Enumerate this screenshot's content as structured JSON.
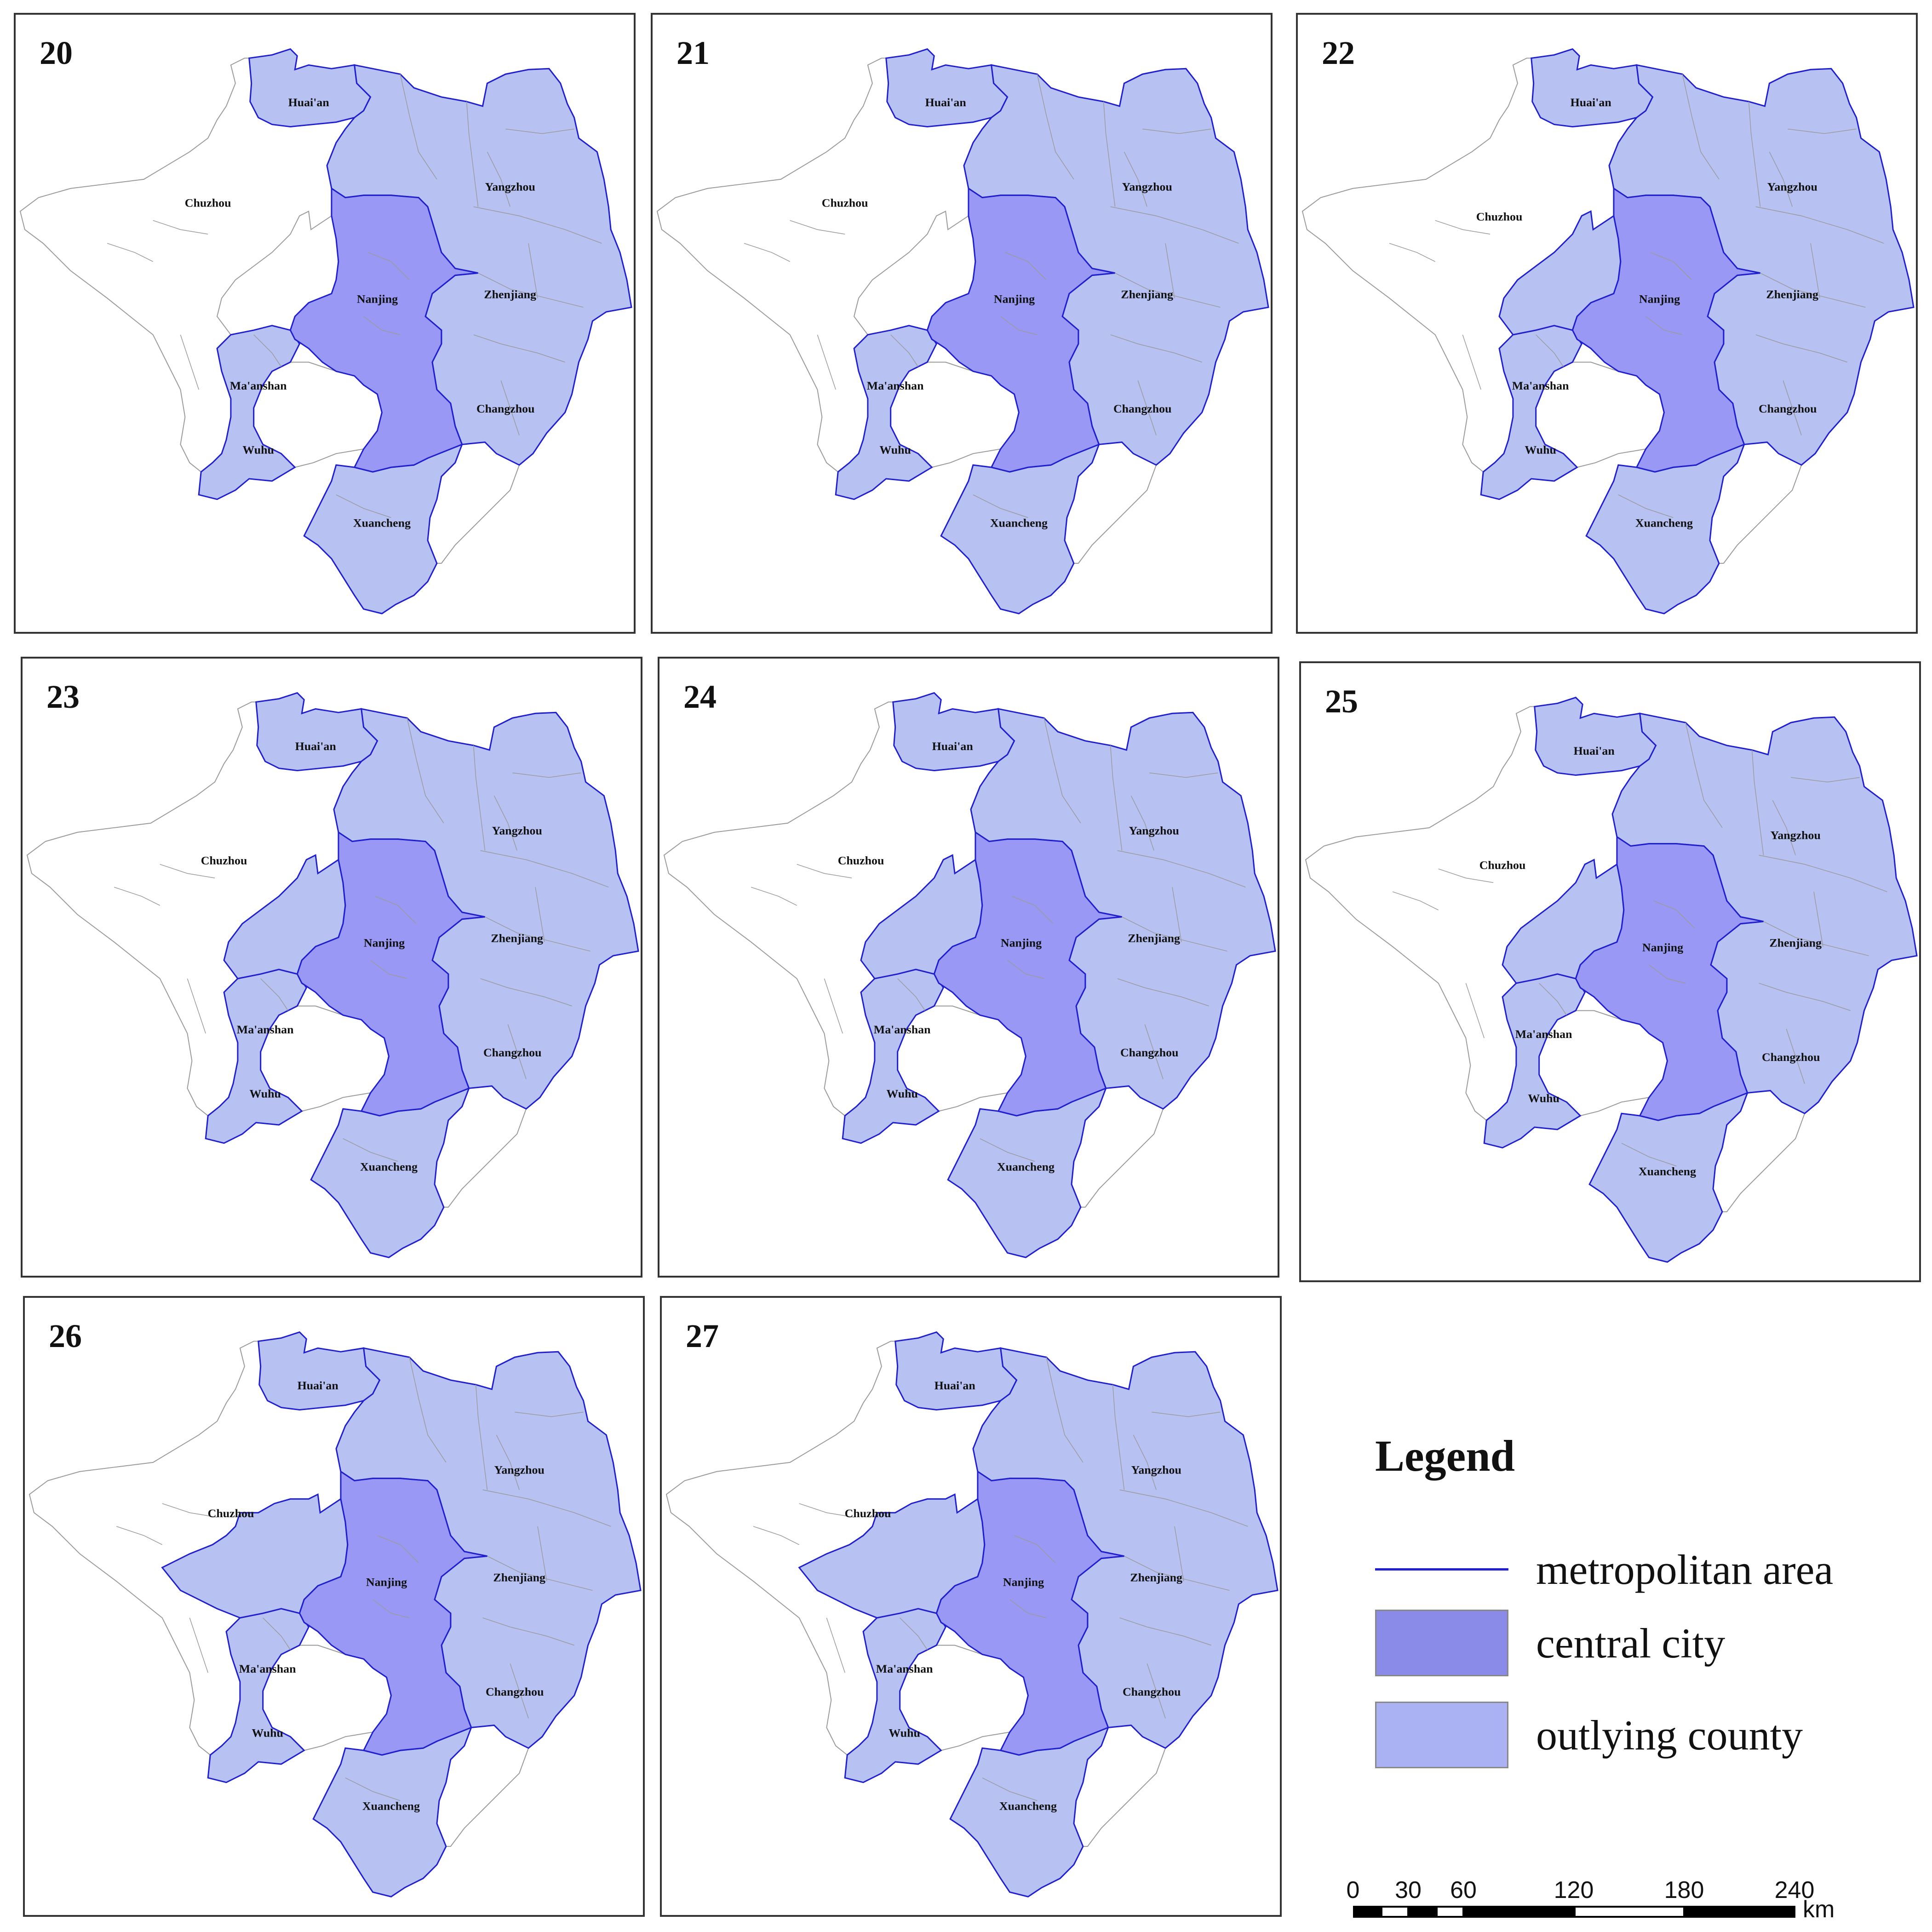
{
  "colors": {
    "central_city": "#9999f5",
    "outlying_county": "#b8c2f2",
    "metro_outline": "#1f1fd0",
    "outside_fill": "#ffffff",
    "inner_boundary": "#9a9a9a"
  },
  "panels": [
    {
      "id": "20",
      "label": "20",
      "extent": "small"
    },
    {
      "id": "21",
      "label": "21",
      "extent": "small"
    },
    {
      "id": "22",
      "label": "22",
      "extent": "partial-chuzhou"
    },
    {
      "id": "23",
      "label": "23",
      "extent": "partial-chuzhou"
    },
    {
      "id": "24",
      "label": "24",
      "extent": "partial-chuzhou"
    },
    {
      "id": "25",
      "label": "25",
      "extent": "partial-chuzhou"
    },
    {
      "id": "26",
      "label": "26",
      "extent": "large-chuzhou"
    },
    {
      "id": "27",
      "label": "27",
      "extent": "large-chuzhou"
    }
  ],
  "cities": [
    "Huai'an",
    "Chuzhou",
    "Yangzhou",
    "Nanjing",
    "Zhenjiang",
    "Ma'anshan",
    "Changzhou",
    "Wuhu",
    "Xuancheng"
  ],
  "legend": {
    "title": "Legend",
    "items": [
      {
        "type": "line",
        "label": "metropolitan area",
        "color": "#1f1fd0"
      },
      {
        "type": "swatch",
        "label": "central city",
        "color": "#8a8ae8"
      },
      {
        "type": "swatch",
        "label": "outlying county",
        "color": "#aab2f4"
      }
    ]
  },
  "scale_bar": {
    "ticks": [
      "0",
      "30",
      "60",
      "120",
      "180",
      "240"
    ],
    "unit": "km"
  }
}
